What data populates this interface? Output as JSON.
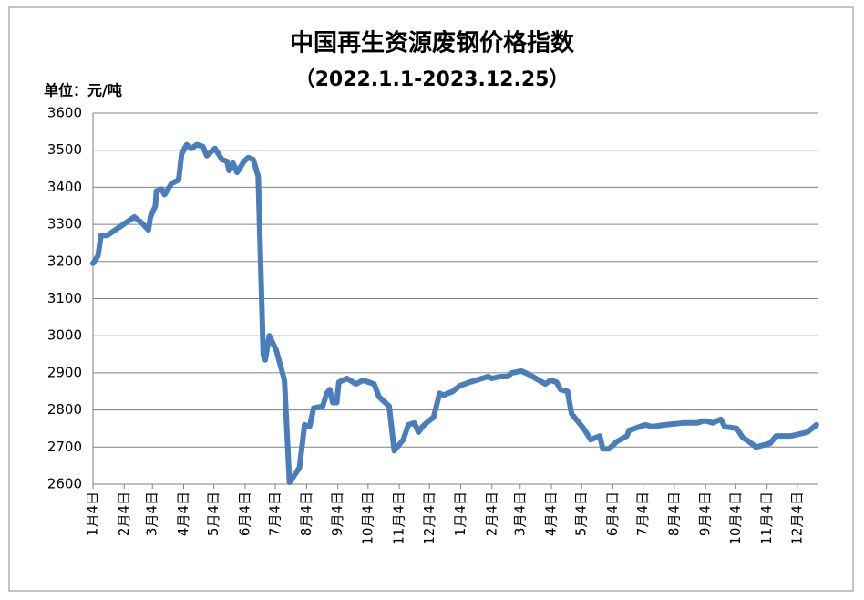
{
  "chart_data": {
    "type": "line",
    "title": "中国再生资源废钢价格指数",
    "subtitle": "（2022.1.1-2023.12.25）",
    "unit_label": "单位：元/吨",
    "color": "#4a7ebb",
    "grid": true,
    "xlim": [
      0,
      720
    ],
    "ylim": [
      2600,
      3600
    ],
    "yticks": [
      2600,
      2700,
      2800,
      2900,
      3000,
      3100,
      3200,
      3300,
      3400,
      3500,
      3600
    ],
    "xticks": [
      {
        "value": 0,
        "label": "1月4日"
      },
      {
        "value": 31,
        "label": "2月4日"
      },
      {
        "value": 59,
        "label": "3月4日"
      },
      {
        "value": 90,
        "label": "4月4日"
      },
      {
        "value": 120,
        "label": "5月4日"
      },
      {
        "value": 151,
        "label": "6月4日"
      },
      {
        "value": 181,
        "label": "7月4日"
      },
      {
        "value": 212,
        "label": "8月4日"
      },
      {
        "value": 243,
        "label": "9月4日"
      },
      {
        "value": 273,
        "label": "10月4日"
      },
      {
        "value": 304,
        "label": "11月4日"
      },
      {
        "value": 334,
        "label": "12月4日"
      },
      {
        "value": 365,
        "label": "1月4日"
      },
      {
        "value": 396,
        "label": "2月4日"
      },
      {
        "value": 424,
        "label": "3月4日"
      },
      {
        "value": 455,
        "label": "4月4日"
      },
      {
        "value": 485,
        "label": "5月4日"
      },
      {
        "value": 516,
        "label": "6月4日"
      },
      {
        "value": 546,
        "label": "7月4日"
      },
      {
        "value": 577,
        "label": "8月4日"
      },
      {
        "value": 608,
        "label": "9月4日"
      },
      {
        "value": 638,
        "label": "10月4日"
      },
      {
        "value": 669,
        "label": "11月4日"
      },
      {
        "value": 699,
        "label": "12月4日"
      }
    ],
    "x": [
      0,
      5,
      8,
      14,
      41,
      48,
      55,
      57,
      62,
      63,
      68,
      71,
      78,
      85,
      88,
      93,
      98,
      103,
      109,
      113,
      121,
      128,
      133,
      135,
      139,
      143,
      150,
      154,
      159,
      164,
      169,
      171,
      175,
      182,
      190,
      195,
      199,
      205,
      210,
      215,
      219,
      228,
      232,
      235,
      238,
      242,
      244,
      252,
      261,
      268,
      279,
      284,
      288,
      294,
      299,
      308,
      313,
      319,
      323,
      327,
      333,
      338,
      344,
      348,
      357,
      364,
      374,
      392,
      396,
      404,
      411,
      416,
      425,
      433,
      449,
      454,
      460,
      464,
      471,
      475,
      487,
      494,
      503,
      506,
      512,
      520,
      530,
      532,
      548,
      555,
      568,
      586,
      600,
      605,
      609,
      615,
      623,
      627,
      639,
      645,
      651,
      658,
      672,
      678,
      693,
      709,
      718
    ],
    "values": [
      3195,
      3215,
      3270,
      3270,
      3320,
      3305,
      3285,
      3320,
      3350,
      3390,
      3395,
      3380,
      3410,
      3420,
      3490,
      3515,
      3505,
      3515,
      3510,
      3485,
      3505,
      3475,
      3470,
      3445,
      3465,
      3440,
      3470,
      3480,
      3475,
      3430,
      2950,
      2935,
      3000,
      2960,
      2880,
      2605,
      2620,
      2645,
      2760,
      2755,
      2805,
      2810,
      2845,
      2855,
      2820,
      2820,
      2875,
      2885,
      2870,
      2880,
      2870,
      2835,
      2825,
      2810,
      2690,
      2720,
      2760,
      2765,
      2740,
      2755,
      2770,
      2780,
      2845,
      2840,
      2850,
      2865,
      2875,
      2890,
      2885,
      2890,
      2890,
      2900,
      2905,
      2895,
      2870,
      2880,
      2875,
      2855,
      2850,
      2790,
      2750,
      2720,
      2730,
      2695,
      2695,
      2715,
      2730,
      2745,
      2760,
      2755,
      2760,
      2765,
      2765,
      2770,
      2770,
      2765,
      2775,
      2755,
      2750,
      2725,
      2715,
      2700,
      2710,
      2730,
      2730,
      2740,
      2760
    ]
  }
}
